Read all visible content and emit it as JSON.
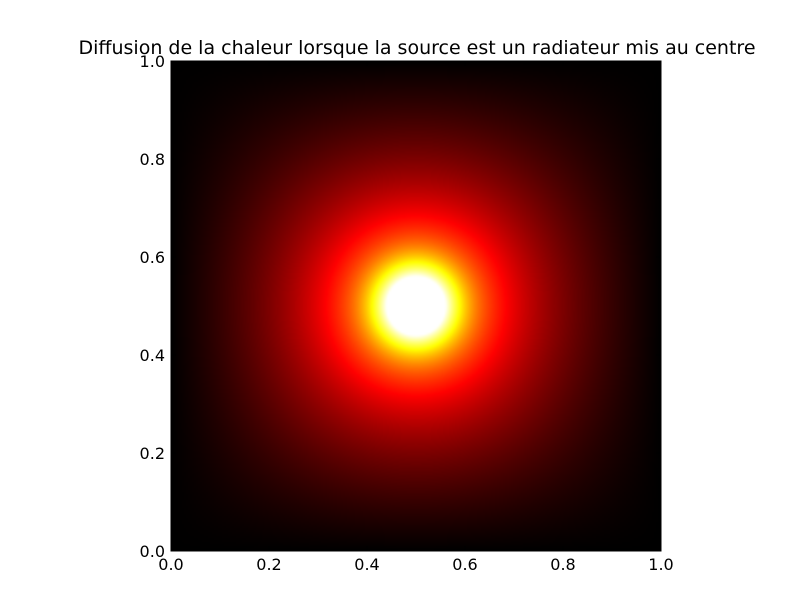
{
  "chart_data": {
    "type": "heatmap",
    "title": "Diffusion de la chaleur lorsque la source est un radiateur mis au centre",
    "xlabel": "",
    "ylabel": "",
    "xlim": [
      0.0,
      1.0
    ],
    "ylim": [
      0.0,
      1.0
    ],
    "x_ticks": [
      "0.0",
      "0.2",
      "0.4",
      "0.6",
      "0.8",
      "1.0"
    ],
    "y_ticks": [
      "0.0",
      "0.2",
      "0.4",
      "0.6",
      "0.8",
      "1.0"
    ],
    "x_tick_values": [
      0.0,
      0.2,
      0.4,
      0.6,
      0.8,
      1.0
    ],
    "y_tick_values": [
      0.0,
      0.2,
      0.4,
      0.6,
      0.8,
      1.0
    ],
    "colormap": "hot",
    "source_center": [
      0.5,
      0.5
    ],
    "boundary_value": "cold",
    "grid": false,
    "legend": "none",
    "colors": {
      "cold": "#000000",
      "warm": "#cc0000",
      "hot": "#ff8800",
      "peak": "#ffffff"
    }
  }
}
